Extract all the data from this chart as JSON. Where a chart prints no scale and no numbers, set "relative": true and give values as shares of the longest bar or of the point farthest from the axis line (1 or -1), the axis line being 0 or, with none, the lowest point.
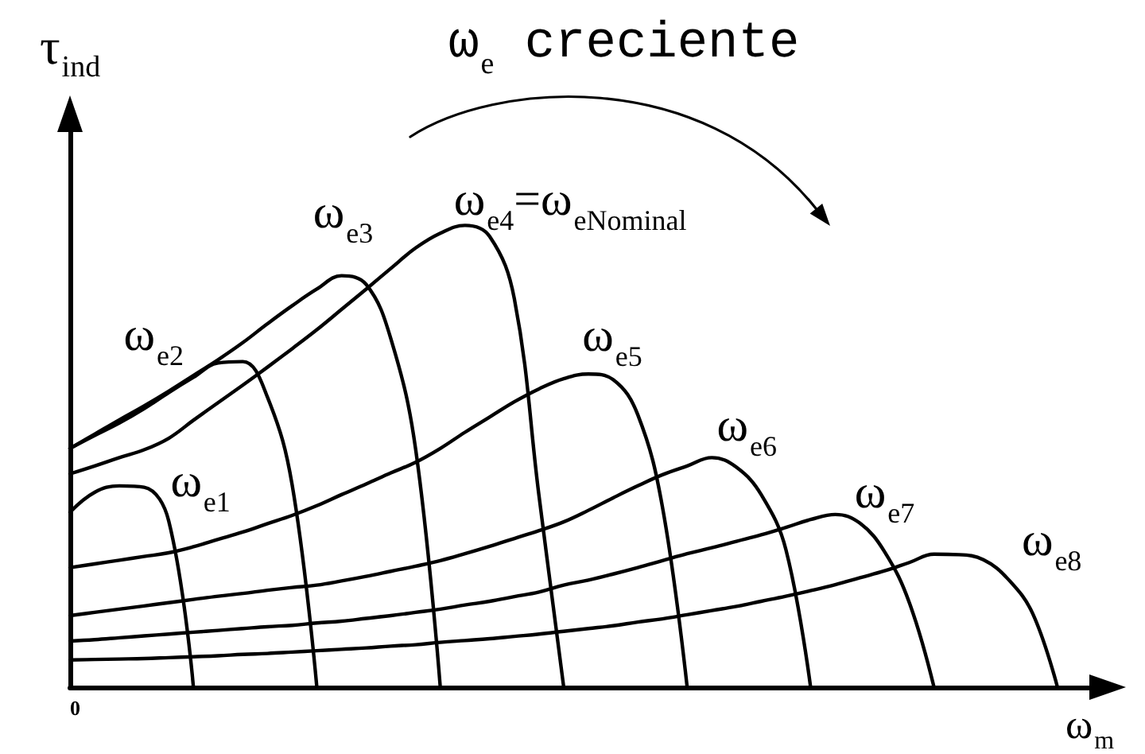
{
  "chart_data": {
    "type": "line",
    "relative": true,
    "xlabel": "ω$_{m}$",
    "ylabel": "τ$_{ind}$",
    "annotations": [
      "ω$_{e}$ creciente",
      "0"
    ],
    "categories": [
      null,
      null,
      null,
      null,
      null,
      null,
      null,
      null,
      null,
      null,
      null,
      null,
      null,
      null,
      null,
      null,
      null,
      null,
      null,
      null,
      null,
      null,
      null,
      null,
      null,
      null,
      null,
      null,
      null,
      null,
      null,
      null,
      null,
      null,
      null,
      null,
      null,
      null,
      null,
      null,
      null,
      null,
      null
    ],
    "series": [
      {
        "name": "ω$_{e1}$",
        "color": "#000000",
        "values": [
          0.379,
          0.422,
          0.436,
          0.433,
          0.36,
          0,
          null,
          null,
          null,
          null,
          null,
          null,
          null,
          null,
          null,
          null,
          null,
          null,
          null,
          null,
          null,
          null,
          null,
          null,
          null,
          null,
          null,
          null,
          null,
          null,
          null,
          null,
          null,
          null,
          null,
          null,
          null,
          null,
          null,
          null,
          null,
          null,
          null
        ]
      },
      {
        "name": "ω$_{e2}$",
        "color": "#000000",
        "values": [
          0.517,
          0.545,
          0.572,
          0.603,
          0.638,
          0.671,
          0.702,
          0.705,
          0.628,
          0.438,
          0,
          null,
          null,
          null,
          null,
          null,
          null,
          null,
          null,
          null,
          null,
          null,
          null,
          null,
          null,
          null,
          null,
          null,
          null,
          null,
          null,
          null,
          null,
          null,
          null,
          null,
          null,
          null,
          null,
          null,
          null,
          null,
          null
        ]
      },
      {
        "name": "ω$_{e3}$",
        "color": "#000000",
        "values": [
          0.517,
          0.548,
          0.579,
          0.609,
          0.641,
          0.675,
          0.709,
          0.746,
          0.787,
          0.826,
          0.862,
          0.891,
          0.872,
          0.754,
          0.516,
          0,
          null,
          null,
          null,
          null,
          null,
          null,
          null,
          null,
          null,
          null,
          null,
          null,
          null,
          null,
          null,
          null,
          null,
          null,
          null,
          null,
          null,
          null,
          null,
          null,
          null,
          null,
          null
        ]
      },
      {
        "name": "ω$_{e4}$=ω$_{eNominal}$",
        "color": "#000000",
        "values": [
          0.462,
          0.479,
          0.497,
          0.514,
          0.539,
          0.578,
          0.616,
          0.654,
          0.693,
          0.733,
          0.774,
          0.818,
          0.862,
          0.907,
          0.951,
          0.983,
          1.0,
          0.976,
          0.841,
          0.414,
          0,
          null,
          null,
          null,
          null,
          null,
          null,
          null,
          null,
          null,
          null,
          null,
          null,
          null,
          null,
          null,
          null,
          null,
          null,
          null,
          null,
          null,
          null
        ]
      },
      {
        "name": "ω$_{e5}$",
        "color": "#000000",
        "values": [
          0.259,
          0.267,
          0.275,
          0.283,
          0.291,
          0.304,
          0.32,
          0.336,
          0.354,
          0.372,
          0.393,
          0.417,
          0.44,
          0.464,
          0.487,
          0.517,
          0.552,
          0.585,
          0.618,
          0.646,
          0.668,
          0.678,
          0.666,
          0.59,
          0.39,
          0,
          null,
          null,
          null,
          null,
          null,
          null,
          null,
          null,
          null,
          null,
          null,
          null,
          null,
          null,
          null,
          null,
          null
        ]
      },
      {
        "name": "ω$_{e6}$",
        "color": "#000000",
        "values": [
          0.155,
          0.162,
          0.169,
          0.176,
          0.183,
          0.19,
          0.197,
          0.203,
          0.21,
          0.216,
          0.221,
          0.23,
          0.24,
          0.251,
          0.262,
          0.274,
          0.289,
          0.305,
          0.322,
          0.339,
          0.358,
          0.383,
          0.41,
          0.436,
          0.46,
          0.479,
          0.497,
          0.476,
          0.417,
          0.298,
          0,
          null,
          null,
          null,
          null,
          null,
          null,
          null,
          null,
          null,
          null,
          null,
          null
        ]
      },
      {
        "name": "ω$_{e7}$",
        "color": "#000000",
        "values": [
          0.1,
          0.103,
          0.107,
          0.111,
          0.115,
          0.119,
          0.123,
          0.127,
          0.131,
          0.134,
          0.139,
          0.143,
          0.149,
          0.155,
          0.162,
          0.169,
          0.178,
          0.186,
          0.196,
          0.206,
          0.221,
          0.232,
          0.245,
          0.259,
          0.274,
          0.289,
          0.302,
          0.316,
          0.33,
          0.346,
          0.363,
          0.374,
          0.355,
          0.293,
          0.183,
          0,
          null,
          null,
          null,
          null,
          null,
          null,
          null
        ]
      },
      {
        "name": "ω$_{e8}$",
        "color": "#000000",
        "values": [
          0.059,
          0.06,
          0.061,
          0.062,
          0.064,
          0.066,
          0.068,
          0.071,
          0.073,
          0.076,
          0.079,
          0.082,
          0.085,
          0.089,
          0.092,
          0.097,
          0.101,
          0.105,
          0.11,
          0.115,
          0.121,
          0.127,
          0.133,
          0.141,
          0.148,
          0.157,
          0.166,
          0.175,
          0.186,
          0.197,
          0.209,
          0.222,
          0.237,
          0.252,
          0.27,
          0.288,
          0.287,
          0.276,
          0.234,
          0.159,
          0,
          null,
          null
        ]
      }
    ]
  }
}
